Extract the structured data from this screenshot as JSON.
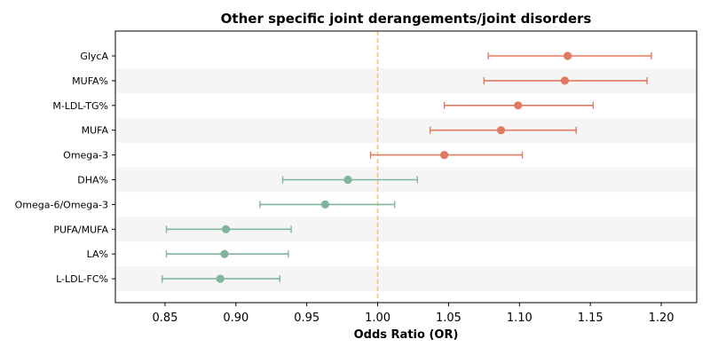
{
  "chart_data": {
    "type": "forest",
    "title": "Other specific joint derangements/joint disorders",
    "xlabel": "Odds Ratio (OR)",
    "xlim": [
      0.815,
      1.225
    ],
    "xticks": [
      "0.85",
      "0.90",
      "0.95",
      "1.00",
      "1.05",
      "1.10",
      "1.15",
      "1.20"
    ],
    "xtick_values": [
      0.85,
      0.9,
      0.95,
      1.0,
      1.05,
      1.1,
      1.15,
      1.2
    ],
    "reference_line": 1.0,
    "colors": {
      "positive": "#e07b61",
      "negative": "#7fb59b",
      "reference": "#f2c57c",
      "band": "#f5f5f5"
    },
    "rows": [
      {
        "label": "GlycA",
        "or": 1.134,
        "lower": 1.078,
        "upper": 1.193
      },
      {
        "label": "MUFA%",
        "or": 1.132,
        "lower": 1.075,
        "upper": 1.19
      },
      {
        "label": "M-LDL-TG%",
        "or": 1.099,
        "lower": 1.047,
        "upper": 1.152
      },
      {
        "label": "MUFA",
        "or": 1.087,
        "lower": 1.037,
        "upper": 1.14
      },
      {
        "label": "Omega-3",
        "or": 1.047,
        "lower": 0.995,
        "upper": 1.102
      },
      {
        "label": "DHA%",
        "or": 0.979,
        "lower": 0.933,
        "upper": 1.028
      },
      {
        "label": "Omega-6/Omega-3",
        "or": 0.963,
        "lower": 0.917,
        "upper": 1.012
      },
      {
        "label": "PUFA/MUFA",
        "or": 0.893,
        "lower": 0.851,
        "upper": 0.939
      },
      {
        "label": "LA%",
        "or": 0.892,
        "lower": 0.851,
        "upper": 0.937
      },
      {
        "label": "L-LDL-FC%",
        "or": 0.889,
        "lower": 0.848,
        "upper": 0.931
      }
    ]
  }
}
